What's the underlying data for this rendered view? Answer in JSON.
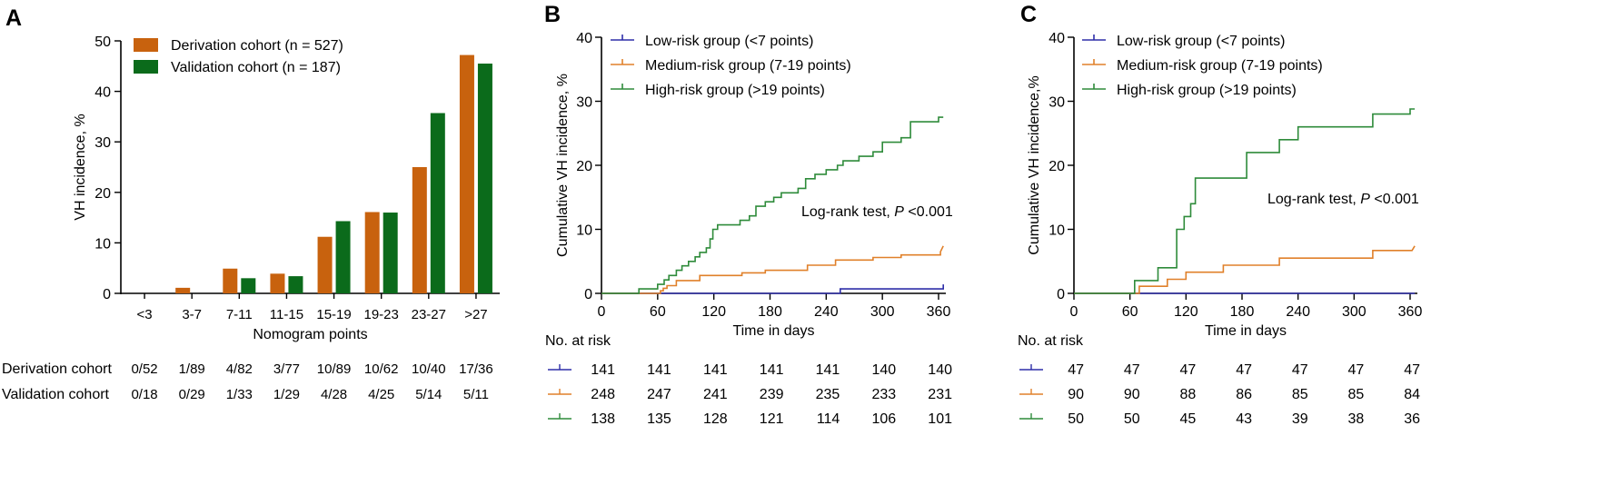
{
  "colors": {
    "derivation": "#c8620e",
    "validation": "#0b6b1b",
    "low": "#2e2ea8",
    "medium": "#e0802a",
    "high": "#2e8b3a"
  },
  "panel_labels": [
    "A",
    "B",
    "C"
  ],
  "chart_data": [
    {
      "type": "bar",
      "id": "A",
      "title": "",
      "xlabel": "Nomogram points",
      "ylabel": "VH incidence, %",
      "ylim": [
        0,
        50
      ],
      "yticks": [
        "0",
        "10",
        "20",
        "30",
        "40",
        "50"
      ],
      "categories": [
        "<3",
        "3-7",
        "7-11",
        "11-15",
        "15-19",
        "19-23",
        "23-27",
        ">27"
      ],
      "legend_position": "top-left",
      "series": [
        {
          "name": "Derivation cohort (n = 527)",
          "color_key": "derivation",
          "values": [
            0,
            1.1,
            4.9,
            3.9,
            11.2,
            16.1,
            25,
            47.2
          ]
        },
        {
          "name": "Validation cohort (n = 187)",
          "color_key": "validation",
          "values": [
            0,
            0,
            3.0,
            3.4,
            14.3,
            16.0,
            35.7,
            45.5
          ]
        }
      ],
      "table": {
        "rows": [
          {
            "label": "Derivation cohort",
            "cells": [
              "0/52",
              "1/89",
              "4/82",
              "3/77",
              "10/89",
              "10/62",
              "10/40",
              "17/36"
            ]
          },
          {
            "label": "Validation cohort",
            "cells": [
              "0/18",
              "0/29",
              "1/33",
              "1/29",
              "4/28",
              "4/25",
              "5/14",
              "5/11"
            ]
          }
        ]
      }
    },
    {
      "type": "line",
      "id": "B",
      "xlabel": "Time in days",
      "ylabel": "Cumulative VH incidence, %",
      "xlim": [
        0,
        365
      ],
      "ylim": [
        0,
        40
      ],
      "xticks": [
        "0",
        "60",
        "120",
        "180",
        "240",
        "300",
        "360"
      ],
      "yticks": [
        "0",
        "10",
        "20",
        "30",
        "40"
      ],
      "annotation": {
        "text_pre": "Log-rank test, ",
        "text_p": "P",
        "text_post": " <0.001"
      },
      "legend_position": "top-left",
      "series": [
        {
          "name": "Low-risk group (<7 points)",
          "color_key": "low",
          "x": [
            0,
            255,
            255,
            365,
            365
          ],
          "y": [
            0,
            0,
            0.7,
            0.7,
            1.4
          ]
        },
        {
          "name": "Medium-risk group (7-19 points)",
          "color_key": "medium",
          "x": [
            0,
            63,
            63,
            66,
            66,
            70,
            70,
            80,
            80,
            105,
            105,
            150,
            150,
            175,
            175,
            220,
            220,
            250,
            250,
            290,
            290,
            320,
            320,
            362,
            362,
            365
          ],
          "y": [
            0,
            0,
            0.4,
            0.4,
            0.8,
            0.8,
            1.2,
            1.2,
            2.0,
            2.0,
            2.8,
            2.8,
            3.2,
            3.2,
            3.6,
            3.6,
            4.4,
            4.4,
            5.2,
            5.2,
            5.6,
            5.6,
            6.0,
            6.0,
            6.5,
            7.4
          ]
        },
        {
          "name": "High-risk group (>19 points)",
          "color_key": "high",
          "x": [
            0,
            40,
            40,
            60,
            60,
            67,
            67,
            72,
            72,
            80,
            80,
            86,
            86,
            93,
            93,
            100,
            100,
            105,
            105,
            112,
            112,
            116,
            116,
            119,
            119,
            124,
            124,
            148,
            148,
            158,
            158,
            165,
            165,
            175,
            175,
            184,
            184,
            192,
            192,
            210,
            210,
            218,
            218,
            228,
            228,
            240,
            240,
            252,
            252,
            258,
            258,
            275,
            275,
            290,
            290,
            300,
            300,
            320,
            320,
            330,
            330,
            360,
            360,
            365
          ],
          "y": [
            0,
            0,
            0.7,
            0.7,
            1.4,
            1.4,
            2.1,
            2.1,
            2.8,
            2.8,
            3.6,
            3.6,
            4.3,
            4.3,
            5.0,
            5.0,
            5.7,
            5.7,
            6.4,
            6.4,
            7.1,
            7.1,
            8.5,
            8.5,
            10.0,
            10.0,
            10.7,
            10.7,
            11.4,
            11.4,
            12.1,
            12.1,
            13.6,
            13.6,
            14.3,
            14.3,
            15.0,
            15.0,
            15.7,
            15.7,
            16.4,
            16.4,
            17.9,
            17.9,
            18.6,
            18.6,
            19.3,
            19.3,
            20.0,
            20.0,
            20.7,
            20.7,
            21.4,
            21.4,
            22.1,
            22.1,
            23.6,
            23.6,
            24.3,
            24.3,
            26.8,
            26.8,
            27.5,
            27.5
          ]
        }
      ],
      "risk_table": {
        "title": "No. at risk",
        "rows": [
          {
            "color_key": "low",
            "values": [
              "141",
              "141",
              "141",
              "141",
              "141",
              "140",
              "140"
            ]
          },
          {
            "color_key": "medium",
            "values": [
              "248",
              "247",
              "241",
              "239",
              "235",
              "233",
              "231"
            ]
          },
          {
            "color_key": "high",
            "values": [
              "138",
              "135",
              "128",
              "121",
              "114",
              "106",
              "101"
            ]
          }
        ]
      }
    },
    {
      "type": "line",
      "id": "C",
      "xlabel": "Time in days",
      "ylabel": "Cumulative VH incidence,%",
      "xlim": [
        0,
        365
      ],
      "ylim": [
        0,
        40
      ],
      "xticks": [
        "0",
        "60",
        "120",
        "180",
        "240",
        "300",
        "360"
      ],
      "yticks": [
        "0",
        "10",
        "20",
        "30",
        "40"
      ],
      "annotation": {
        "text_pre": "Log-rank test, ",
        "text_p": "P",
        "text_post": " <0.001"
      },
      "legend_position": "top-left",
      "series": [
        {
          "name": "Low-risk group (<7 points)",
          "color_key": "low",
          "x": [
            0,
            365
          ],
          "y": [
            0,
            0
          ]
        },
        {
          "name": "Medium-risk group (7-19 points)",
          "color_key": "medium",
          "x": [
            0,
            70,
            70,
            100,
            100,
            120,
            120,
            160,
            160,
            220,
            220,
            320,
            320,
            362,
            362,
            365
          ],
          "y": [
            0,
            0,
            1.1,
            1.1,
            2.2,
            2.2,
            3.3,
            3.3,
            4.4,
            4.4,
            5.5,
            5.5,
            6.7,
            6.7,
            6.7,
            7.4
          ]
        },
        {
          "name": "High-risk group (>19 points)",
          "color_key": "high",
          "x": [
            0,
            65,
            65,
            90,
            90,
            110,
            110,
            118,
            118,
            125,
            125,
            130,
            130,
            185,
            185,
            220,
            220,
            240,
            240,
            320,
            320,
            360,
            360,
            365
          ],
          "y": [
            0,
            0,
            2.0,
            2.0,
            4.0,
            4.0,
            10.0,
            10.0,
            12.0,
            12.0,
            14.0,
            14.0,
            18.0,
            18.0,
            22.0,
            22.0,
            24.0,
            24.0,
            26.0,
            26.0,
            28.0,
            28.0,
            28.8,
            28.8
          ]
        }
      ],
      "risk_table": {
        "title": "No. at risk",
        "rows": [
          {
            "color_key": "low",
            "values": [
              "47",
              "47",
              "47",
              "47",
              "47",
              "47",
              "47"
            ]
          },
          {
            "color_key": "medium",
            "values": [
              "90",
              "90",
              "88",
              "86",
              "85",
              "85",
              "84"
            ]
          },
          {
            "color_key": "high",
            "values": [
              "50",
              "50",
              "45",
              "43",
              "39",
              "38",
              "36"
            ]
          }
        ]
      }
    }
  ]
}
